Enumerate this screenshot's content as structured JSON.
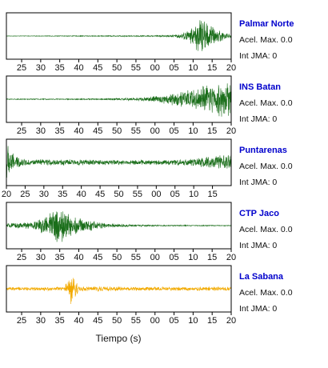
{
  "chart_data": {
    "type": "line",
    "xlabel": "Tiempo (s)",
    "panels": [
      {
        "station": "Palmar Norte",
        "accel_label": "Acel. Max.",
        "accel_value": "0.0",
        "jma_label": "Int JMA:",
        "jma_value": "0",
        "color": "#1a6e1a",
        "ticks": [
          "25",
          "30",
          "35",
          "40",
          "45",
          "50",
          "55",
          "00",
          "05",
          "10",
          "15",
          "20"
        ],
        "tick_seconds": [
          25,
          30,
          35,
          40,
          45,
          50,
          55,
          60,
          65,
          70,
          75,
          80
        ],
        "xlim": [
          21,
          80
        ],
        "envelope": [
          [
            21,
            0.01
          ],
          [
            60,
            0.03
          ],
          [
            65,
            0.06
          ],
          [
            68,
            0.2
          ],
          [
            70,
            0.45
          ],
          [
            72,
            1.0
          ],
          [
            73,
            0.8
          ],
          [
            75,
            0.5
          ],
          [
            78,
            0.2
          ],
          [
            80,
            0.1
          ]
        ]
      },
      {
        "station": "INS Batan",
        "accel_label": "Acel. Max.",
        "accel_value": "0.0",
        "jma_label": "Int JMA:",
        "jma_value": "0",
        "color": "#1a6e1a",
        "ticks": [
          "25",
          "30",
          "35",
          "40",
          "45",
          "50",
          "55",
          "00",
          "05",
          "10",
          "15",
          "20"
        ],
        "tick_seconds": [
          25,
          30,
          35,
          40,
          45,
          50,
          55,
          60,
          65,
          70,
          75,
          80
        ],
        "xlim": [
          21,
          80
        ],
        "envelope": [
          [
            21,
            0.02
          ],
          [
            45,
            0.03
          ],
          [
            55,
            0.08
          ],
          [
            60,
            0.15
          ],
          [
            65,
            0.3
          ],
          [
            70,
            0.5
          ],
          [
            75,
            0.75
          ],
          [
            78,
            0.9
          ],
          [
            80,
            1.0
          ]
        ]
      },
      {
        "station": "Puntarenas",
        "accel_label": "Acel. Max.",
        "accel_value": "0.0",
        "jma_label": "Int JMA:",
        "jma_value": "0",
        "color": "#1a6e1a",
        "ticks": [
          "20",
          "25",
          "30",
          "35",
          "40",
          "45",
          "50",
          "55",
          "00",
          "05",
          "10",
          "15"
        ],
        "tick_seconds": [
          20,
          25,
          30,
          35,
          40,
          45,
          50,
          55,
          60,
          65,
          70,
          75
        ],
        "xlim": [
          20,
          80
        ],
        "envelope": [
          [
            20,
            1.0
          ],
          [
            21,
            0.8
          ],
          [
            22,
            0.35
          ],
          [
            25,
            0.15
          ],
          [
            35,
            0.15
          ],
          [
            50,
            0.12
          ],
          [
            60,
            0.12
          ],
          [
            70,
            0.18
          ],
          [
            75,
            0.3
          ],
          [
            80,
            0.4
          ]
        ]
      },
      {
        "station": "CTP Jaco",
        "accel_label": "Acel. Max.",
        "accel_value": "0.0",
        "jma_label": "Int JMA:",
        "jma_value": "0",
        "color": "#1a6e1a",
        "ticks": [
          "25",
          "30",
          "35",
          "40",
          "45",
          "50",
          "55",
          "00",
          "05",
          "10",
          "15",
          "20"
        ],
        "tick_seconds": [
          25,
          30,
          35,
          40,
          45,
          50,
          55,
          60,
          65,
          70,
          75,
          80
        ],
        "xlim": [
          21,
          80
        ],
        "envelope": [
          [
            21,
            0.1
          ],
          [
            28,
            0.2
          ],
          [
            32,
            0.5
          ],
          [
            34,
            1.0
          ],
          [
            36,
            0.9
          ],
          [
            38,
            0.5
          ],
          [
            42,
            0.3
          ],
          [
            46,
            0.15
          ],
          [
            50,
            0.08
          ],
          [
            60,
            0.03
          ],
          [
            80,
            0.02
          ]
        ]
      },
      {
        "station": "La Sabana",
        "accel_label": "Acel. Max.",
        "accel_value": "0.0",
        "jma_label": "Int JMA:",
        "jma_value": "0",
        "color": "#f2aa00",
        "ticks": [
          "25",
          "30",
          "35",
          "40",
          "45",
          "50",
          "55",
          "00",
          "05",
          "10",
          "15",
          "20"
        ],
        "tick_seconds": [
          25,
          30,
          35,
          40,
          45,
          50,
          55,
          60,
          65,
          70,
          75,
          80
        ],
        "xlim": [
          21,
          80
        ],
        "envelope": [
          [
            21,
            0.08
          ],
          [
            36,
            0.1
          ],
          [
            37.5,
            0.5
          ],
          [
            38.2,
            1.0
          ],
          [
            39,
            0.5
          ],
          [
            40,
            0.12
          ],
          [
            60,
            0.1
          ],
          [
            80,
            0.1
          ]
        ]
      }
    ]
  },
  "colors": {
    "station_name": "#0000cc",
    "frame": "#000000"
  }
}
